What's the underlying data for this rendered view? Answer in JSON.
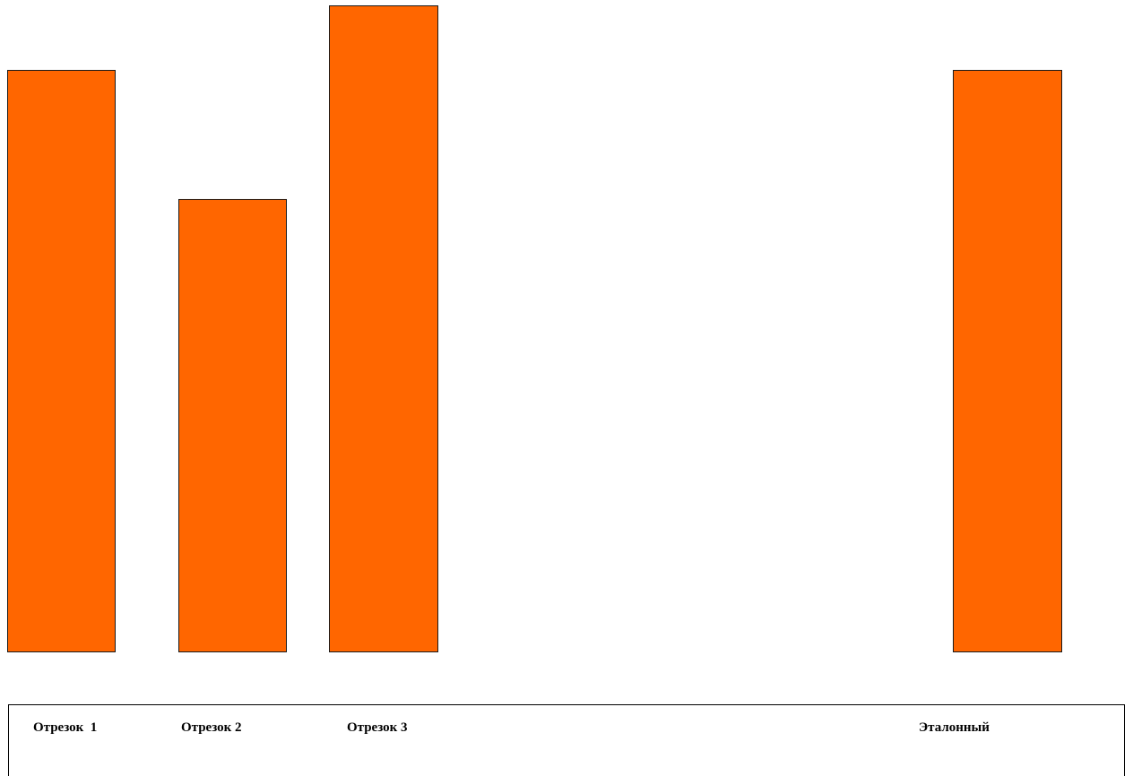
{
  "colors": {
    "bar_fill": "#FF6600",
    "bar_border": "#1a1a1a",
    "background": "#FFFFFF"
  },
  "labels": [
    "Отрезок  1",
    "Отрезок 2",
    "Отрезок 3",
    "Эталонный"
  ]
}
